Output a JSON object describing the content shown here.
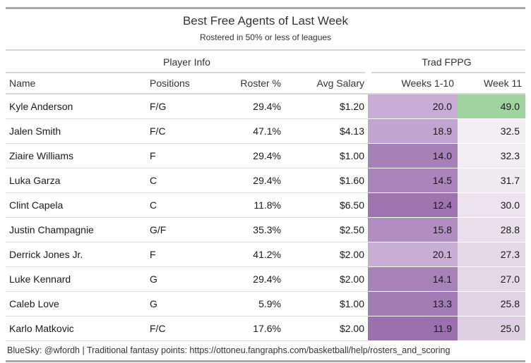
{
  "table": {
    "title": "Best Free Agents of Last Week",
    "subtitle": "Rostered in 50% or less of leagues",
    "spanners": {
      "player_info": "Player Info",
      "trad_fppg": "Trad FPPG"
    },
    "columns": {
      "name": "Name",
      "positions": "Positions",
      "roster_pct": "Roster %",
      "avg_salary": "Avg Salary",
      "weeks_1_10": "Weeks 1-10",
      "week_11": "Week 11"
    },
    "rows": [
      {
        "name": "Kyle Anderson",
        "positions": "F/G",
        "roster_pct": "29.4%",
        "avg_salary": "$1.20",
        "weeks_1_10": "20.0",
        "weeks_1_10_color": "#c7add5",
        "week_11": "49.0",
        "week_11_color": "#a0d49e"
      },
      {
        "name": "Jalen Smith",
        "positions": "F/C",
        "roster_pct": "47.1%",
        "avg_salary": "$4.13",
        "weeks_1_10": "18.9",
        "weeks_1_10_color": "#c1a4cf",
        "week_11": "32.5",
        "week_11_color": "#f2eef3"
      },
      {
        "name": "Ziaire Williams",
        "positions": "F",
        "roster_pct": "29.4%",
        "avg_salary": "$1.00",
        "weeks_1_10": "14.0",
        "weeks_1_10_color": "#a780b8",
        "week_11": "32.3",
        "week_11_color": "#f1edf2"
      },
      {
        "name": "Luka Garza",
        "positions": "C",
        "roster_pct": "29.4%",
        "avg_salary": "$1.60",
        "weeks_1_10": "14.5",
        "weeks_1_10_color": "#aa84bb",
        "week_11": "31.7",
        "week_11_color": "#efe9f0"
      },
      {
        "name": "Clint Capela",
        "positions": "C",
        "roster_pct": "11.8%",
        "avg_salary": "$6.50",
        "weeks_1_10": "12.4",
        "weeks_1_10_color": "#9e73b0",
        "week_11": "30.0",
        "week_11_color": "#ece3ee"
      },
      {
        "name": "Justin Champagnie",
        "positions": "G/F",
        "roster_pct": "35.3%",
        "avg_salary": "$2.50",
        "weeks_1_10": "15.8",
        "weeks_1_10_color": "#b28dc1",
        "week_11": "28.8",
        "week_11_color": "#e9dfec"
      },
      {
        "name": "Derrick Jones Jr.",
        "positions": "F",
        "roster_pct": "41.2%",
        "avg_salary": "$2.00",
        "weeks_1_10": "20.1",
        "weeks_1_10_color": "#c8aed5",
        "week_11": "27.3",
        "week_11_color": "#e5d9e8"
      },
      {
        "name": "Luke Kennard",
        "positions": "G",
        "roster_pct": "29.4%",
        "avg_salary": "$2.00",
        "weeks_1_10": "14.1",
        "weeks_1_10_color": "#a881b9",
        "week_11": "27.0",
        "week_11_color": "#e4d8e7"
      },
      {
        "name": "Caleb Love",
        "positions": "G",
        "roster_pct": "5.9%",
        "avg_salary": "$1.00",
        "weeks_1_10": "13.3",
        "weeks_1_10_color": "#a37cb5",
        "week_11": "25.8",
        "week_11_color": "#e1d3e5"
      },
      {
        "name": "Karlo Matkovic",
        "positions": "F/C",
        "roster_pct": "17.6%",
        "avg_salary": "$2.00",
        "weeks_1_10": "11.9",
        "weeks_1_10_color": "#9b70ae",
        "week_11": "25.0",
        "week_11_color": "#decfe3"
      }
    ],
    "source_note": "BlueSky: @wfordh | Traditional fantasy points: https://ottoneu.fangraphs.com/basketball/help/rosters_and_scoring"
  },
  "colors": {
    "rule_heavy": "#a9a9a9",
    "rule_light": "#d5d5d5",
    "row_divider": "#dddddd",
    "heat_green_high": "#a0d49e",
    "heat_purple_dark": "#9b70ae",
    "heat_purple_light": "#c8aed5",
    "text": "#333333"
  },
  "chart_data": {
    "type": "table",
    "title": "Best Free Agents of Last Week",
    "subtitle": "Rostered in 50% or less of leagues",
    "column_groups": [
      {
        "label": "Player Info",
        "columns": [
          "Name",
          "Positions",
          "Roster %",
          "Avg Salary"
        ]
      },
      {
        "label": "Trad FPPG",
        "columns": [
          "Weeks 1-10",
          "Week 11"
        ]
      }
    ],
    "columns": [
      "Name",
      "Positions",
      "Roster %",
      "Avg Salary",
      "Weeks 1-10",
      "Week 11"
    ],
    "rows": [
      [
        "Kyle Anderson",
        "F/G",
        29.4,
        1.2,
        20.0,
        49.0
      ],
      [
        "Jalen Smith",
        "F/C",
        47.1,
        4.13,
        18.9,
        32.5
      ],
      [
        "Ziaire Williams",
        "F",
        29.4,
        1.0,
        14.0,
        32.3
      ],
      [
        "Luka Garza",
        "C",
        29.4,
        1.6,
        14.5,
        31.7
      ],
      [
        "Clint Capela",
        "C",
        11.8,
        6.5,
        12.4,
        30.0
      ],
      [
        "Justin Champagnie",
        "G/F",
        35.3,
        2.5,
        15.8,
        28.8
      ],
      [
        "Derrick Jones Jr.",
        "F",
        41.2,
        2.0,
        20.1,
        27.3
      ],
      [
        "Luke Kennard",
        "G",
        29.4,
        2.0,
        14.1,
        27.0
      ],
      [
        "Caleb Love",
        "G",
        5.9,
        1.0,
        13.3,
        25.8
      ],
      [
        "Karlo Matkovic",
        "F/C",
        17.6,
        2.0,
        11.9,
        25.0
      ]
    ],
    "heatmap_columns": [
      "Weeks 1-10",
      "Week 11"
    ],
    "heatmap_note": "purple = lower FPPG, white = mid, green = higher FPPG",
    "source_note": "BlueSky: @wfordh | Traditional fantasy points: https://ottoneu.fangraphs.com/basketball/help/rosters_and_scoring"
  }
}
